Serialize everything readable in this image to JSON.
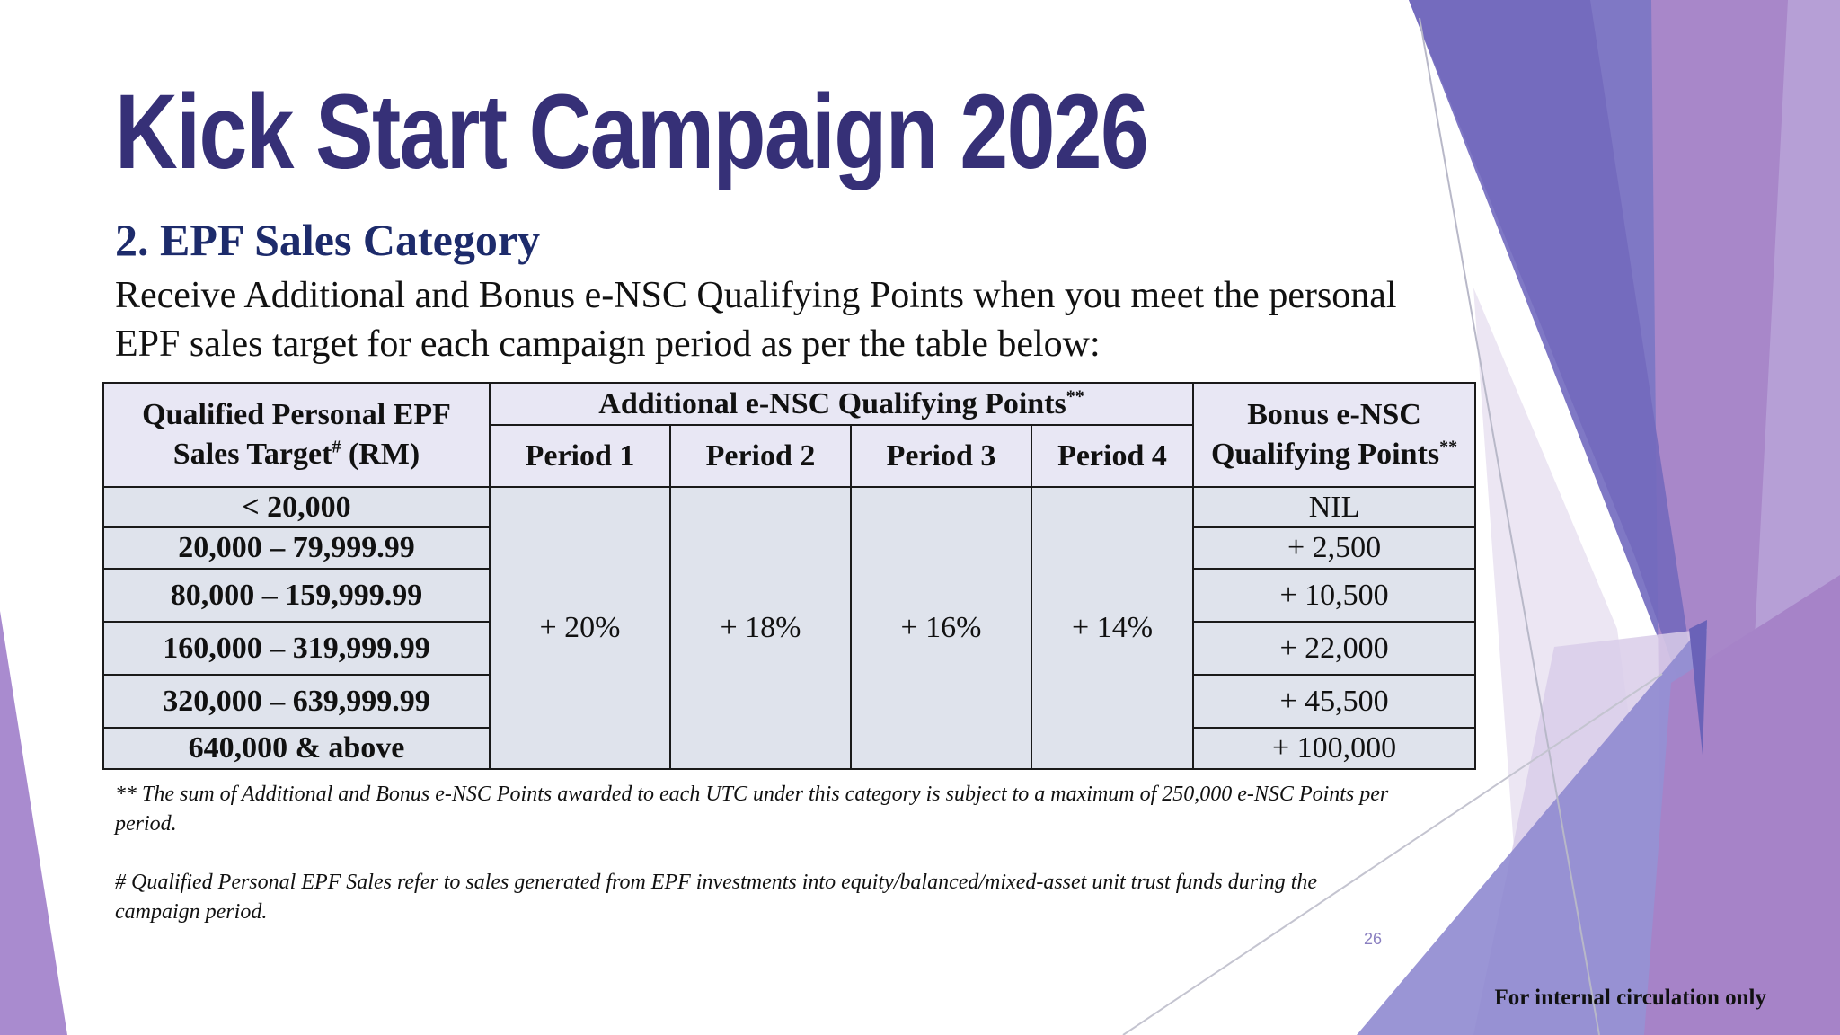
{
  "title": "Kick Start Campaign 2026",
  "section_heading": "2. EPF Sales Category",
  "intro": "Receive Additional and Bonus e-NSC Qualifying Points when you meet the personal EPF sales target for each campaign period as per the table below:",
  "table": {
    "target_header_line1": "Qualified Personal EPF",
    "target_header_line2": "Sales Target",
    "target_header_mark": "#",
    "target_header_unit": "(RM)",
    "additional_header": "Additional e-NSC Qualifying Points",
    "additional_header_mark": "**",
    "bonus_header_line1": "Bonus e-NSC",
    "bonus_header_line2": "Qualifying Points",
    "bonus_header_mark": "**",
    "periods": [
      "Period 1",
      "Period 2",
      "Period 3",
      "Period 4"
    ],
    "period_percentages": [
      "+ 20%",
      "+ 18%",
      "+ 16%",
      "+ 14%"
    ],
    "rows": [
      {
        "target": "< 20,000",
        "bonus": "NIL"
      },
      {
        "target": "20,000 – 79,999.99",
        "bonus": "+ 2,500"
      },
      {
        "target": "80,000 – 159,999.99",
        "bonus": "+ 10,500"
      },
      {
        "target": "160,000 – 319,999.99",
        "bonus": "+ 22,000"
      },
      {
        "target": "320,000 – 639,999.99",
        "bonus": "+ 45,500"
      },
      {
        "target": "640,000 & above",
        "bonus": "+ 100,000"
      }
    ]
  },
  "footnotes": {
    "max_points": "** The sum of Additional and Bonus e-NSC Points awarded to each UTC under this category is subject to a maximum of 250,000 e-NSC Points per period.",
    "qualified_sales": "# Qualified Personal EPF Sales refer to sales generated from EPF investments into equity/balanced/mixed-asset unit trust funds during the campaign period."
  },
  "page_number": "26",
  "circulation_note": "For internal circulation only",
  "colors": {
    "title": "#363077",
    "heading": "#1d2b6b",
    "header_cell": "#e8e7f4",
    "body_cell": "#dfe3ec",
    "accent_purple": "#7b6fc2",
    "accent_violet": "#9b7cc6"
  }
}
